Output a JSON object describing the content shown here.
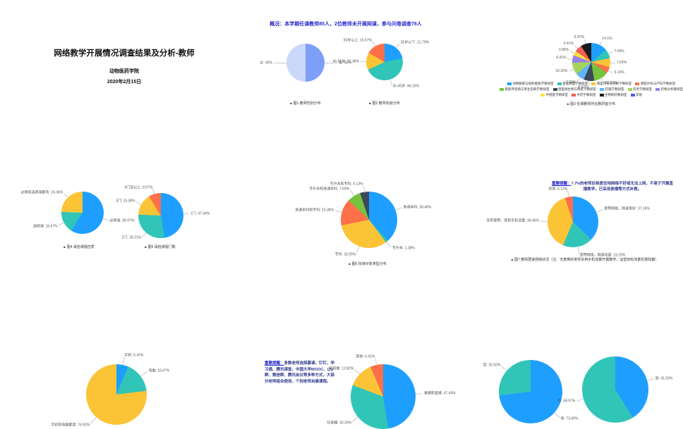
{
  "title_slide": {
    "title": "网络教学开展情况调查结果及分析-教师",
    "org": "动物医药学院",
    "date": "2020年2月15日"
  },
  "overview_slide": {
    "heading": "概况：本学期任课教师85人，2位教师未开展网课，参与问卷调查78人"
  },
  "network_slide_note": {
    "lead": "重要提醒：",
    "body": "7.7%的老师反映居住地网络不好或无法上网，不易于开展直播教学，已采用录播等方式补救。"
  },
  "platform_slide_note": {
    "lead": "重要提醒：",
    "body": "多数老师选择慕课、钉钉、学习通、腾讯课堂、中国大学MOOC、QQ群、微信群、腾讯会议等多种方式，大部分老师组合使用，个别老师自建课程。"
  },
  "colors": {
    "heading_blue": "#2a2ad0",
    "note_blue": "#323a8e",
    "caption_gray": "#333333",
    "label_gray": "#555555",
    "leader_gray": "#c4c8cf"
  },
  "chart_data": [
    {
      "name": "teacher-gender",
      "type": "pie",
      "caption": "图1 教师性别分布",
      "slices": [
        {
          "label": "男",
          "value": 50,
          "color": "#7e9ff8",
          "display": "男: 50%"
        },
        {
          "label": "女",
          "value": 50,
          "color": "#cbd8fa",
          "display": "女: 50%"
        }
      ]
    },
    {
      "name": "teacher-age",
      "type": "pie",
      "caption": "图2 教师年龄分布",
      "slices": [
        {
          "label": "35岁以下",
          "value": 21.79,
          "color": "#1e9fff",
          "display": "35岁以下: 21.79%"
        },
        {
          "label": "36-45岁",
          "value": 46.15,
          "color": "#31c5b8",
          "display": "36-45岁: 46.15%"
        },
        {
          "label": "46-55岁",
          "value": 15.38,
          "color": "#fbc437",
          "display": "46-55岁: 15.38%"
        },
        {
          "label": "55岁以上",
          "value": 16.67,
          "color": "#fd7049",
          "display": "55岁以上: 16.67%"
        }
      ]
    },
    {
      "name": "teaching-department",
      "type": "pie",
      "caption": "图3 任课教师所在教研室分布",
      "slices": [
        {
          "label": "动物解剖与组织胚胎学教研室",
          "value": 14.1,
          "color": "#1e9fff",
          "display": "14.1%"
        },
        {
          "label": "兽医病理学教研室",
          "value": 7.69,
          "color": "#31c5b8",
          "display": "7.69%"
        },
        {
          "label": "兽医内科与诊断学教研室",
          "value": 7.69,
          "color": "#fbc437",
          "display": "7.69%"
        },
        {
          "label": "兽医外科与产科学教研室",
          "value": 5.13,
          "color": "#fd7049",
          "display": "5.13%"
        },
        {
          "label": "兽医传染病与寄生虫病学教研室",
          "value": 12.82,
          "color": "#76c33f",
          "display": "12.82%"
        },
        {
          "label": "兽医微生物与免疫学教研室",
          "value": 8.97,
          "color": "#3c4858",
          "display": "8.97%"
        },
        {
          "label": "药理学教研室",
          "value": 7.69,
          "color": "#62b5f6",
          "display": "7.69%"
        },
        {
          "label": "药剂学教研室",
          "value": 10.26,
          "color": "#a3d55a",
          "display": "10.26%"
        },
        {
          "label": "药物分析教研室",
          "value": 6.41,
          "color": "#9b7fe8",
          "display": "6.41%"
        },
        {
          "label": "中兽医学教研室",
          "value": 3.85,
          "color": "#ffe13d",
          "display": "3.85%"
        },
        {
          "label": "中药学教研室",
          "value": 6.41,
          "color": "#f25e53",
          "display": "6.41%"
        },
        {
          "label": "生物制药教研室",
          "value": 8.97,
          "color": "#1a1a1a",
          "display": "8.97%"
        }
      ],
      "legend": [
        {
          "label": "动物解剖与组织胚胎学教研室",
          "color": "#1e9fff"
        },
        {
          "label": "兽医病理学教研室",
          "color": "#31c5b8"
        },
        {
          "label": "兽医内科与诊断学教研室",
          "color": "#fbc437"
        },
        {
          "label": "兽医外科与产科学教研室",
          "color": "#fd7049"
        },
        {
          "label": "兽医传染病与寄生虫病学教研室",
          "color": "#76c33f"
        },
        {
          "label": "兽医微生物与免疫学教研室",
          "color": "#3c4858"
        },
        {
          "label": "药理学教研室",
          "color": "#62b5f6"
        },
        {
          "label": "药剂学教研室",
          "color": "#a3d55a"
        },
        {
          "label": "药物分析教研室",
          "color": "#9b7fe8"
        },
        {
          "label": "中兽医学教研室",
          "color": "#ffe13d"
        },
        {
          "label": "中药学教研室",
          "color": "#f25e53"
        },
        {
          "label": "生物制药教研室",
          "color": "#1a1a1a"
        },
        {
          "label": "其他",
          "color": "#4763e4"
        }
      ]
    },
    {
      "name": "course-type",
      "type": "pie",
      "caption": "图4 承担课程性质",
      "slices": [
        {
          "label": "必修课",
          "value": 58.97,
          "color": "#1e9fff",
          "display": "必修课: 58.97%"
        },
        {
          "label": "选修课",
          "value": 16.67,
          "color": "#31c5b8",
          "display": "选修课: 16.67%"
        },
        {
          "label": "必修和选修课都有",
          "value": 24.36,
          "color": "#fbc437",
          "display": "必修和选修课都有: 24.36%"
        }
      ]
    },
    {
      "name": "course-count",
      "type": "pie",
      "caption": "图5 承担课程门数",
      "slices": [
        {
          "label": "1门",
          "value": 47.44,
          "color": "#1e9fff",
          "display": "1门: 47.44%"
        },
        {
          "label": "2门",
          "value": 28.21,
          "color": "#31c5b8",
          "display": "2门: 28.21%"
        },
        {
          "label": "3门",
          "value": 15.38,
          "color": "#fbc437",
          "display": "3门: 15.38%"
        },
        {
          "label": "4门及以上",
          "value": 8.97,
          "color": "#fd7049",
          "display": "4门及以上: 8.97%"
        }
      ]
    },
    {
      "name": "student-type",
      "type": "pie",
      "caption": "图6 授课对象类型分布",
      "slices": [
        {
          "label": "普通本科",
          "value": 38.46,
          "color": "#1e9fff",
          "display": "普通本科: 38.46%"
        },
        {
          "label": "专升本",
          "value": 1.28,
          "color": "#31c5b8",
          "display": "专升本: 1.28%"
        },
        {
          "label": "专科",
          "value": 32.05,
          "color": "#fbc437",
          "display": "专科: 32.05%"
        },
        {
          "label": "普通本科和专科",
          "value": 15.38,
          "color": "#fd7049",
          "display": "普通本科和专科: 15.38%"
        },
        {
          "label": "专升本和普通本科",
          "value": 7.69,
          "color": "#76c33f",
          "display": "专升本和普通本科: 7.69%"
        },
        {
          "label": "专升本和专科",
          "value": 5.13,
          "color": "#3c4858",
          "display": "专升本和专科: 5.13%"
        }
      ]
    },
    {
      "name": "home-network",
      "type": "pie",
      "caption": "图7 教师居家网络状况（注：无宽带的老师多用手机流量开展教学，运营商有流量优惠政策）",
      "slices": [
        {
          "label": "宽带网络，网速良好",
          "value": 37.18,
          "color": "#1e9fff",
          "display": "宽带网络，网速良好: 37.18%"
        },
        {
          "label": "宽带网络，网速较差",
          "value": 19.23,
          "color": "#31c5b8",
          "display": "宽带网络，网速较差: 19.23%"
        },
        {
          "label": "没有宽带，使用手机流量",
          "value": 38.46,
          "color": "#fbc437",
          "display": "没有宽带，使用手机流量: 38.46%"
        },
        {
          "label": "其他",
          "value": 5.13,
          "color": "#fd7049",
          "display": "其他: 5.13%"
        }
      ]
    },
    {
      "name": "teaching-device",
      "type": "pie",
      "caption": "",
      "slices": [
        {
          "label": "手机",
          "value": 6.41,
          "color": "#1e9fff",
          "display": "手机: 6.41%"
        },
        {
          "label": "电脑",
          "value": 16.67,
          "color": "#31c5b8",
          "display": "电脑: 16.67%"
        },
        {
          "label": "手机和电脑都用",
          "value": 76.92,
          "color": "#fbc437",
          "display": "手机和电脑都用: 76.92%"
        }
      ]
    },
    {
      "name": "teaching-mode",
      "type": "pie",
      "caption": "",
      "slices": [
        {
          "label": "录播和直播",
          "value": 47.44,
          "color": "#1e9fff",
          "display": "录播和直播: 47.44%"
        },
        {
          "label": "仅录播",
          "value": 33.33,
          "color": "#31c5b8",
          "display": "仅录播: 33.33%"
        },
        {
          "label": "仅直播",
          "value": 12.82,
          "color": "#fbc437",
          "display": "仅直播: 12.82%"
        },
        {
          "label": "其他",
          "value": 6.41,
          "color": "#fd7049",
          "display": "其他: 6.41%"
        }
      ]
    },
    {
      "name": "question-yes-no-left",
      "type": "pie",
      "caption": "",
      "slices": [
        {
          "label": "是",
          "value": 73.08,
          "color": "#1e9fff",
          "display": "是: 73.08%"
        },
        {
          "label": "否",
          "value": 26.92,
          "color": "#31c5b8",
          "display": "否: 26.92%"
        }
      ]
    },
    {
      "name": "question-yes-no-right",
      "type": "pie",
      "caption": "",
      "slices": [
        {
          "label": "是",
          "value": 41.03,
          "color": "#1e9fff",
          "display": "是: 41.03%"
        },
        {
          "label": "否",
          "value": 58.97,
          "color": "#31c5b8",
          "display": "否: 58.97%"
        }
      ]
    }
  ]
}
